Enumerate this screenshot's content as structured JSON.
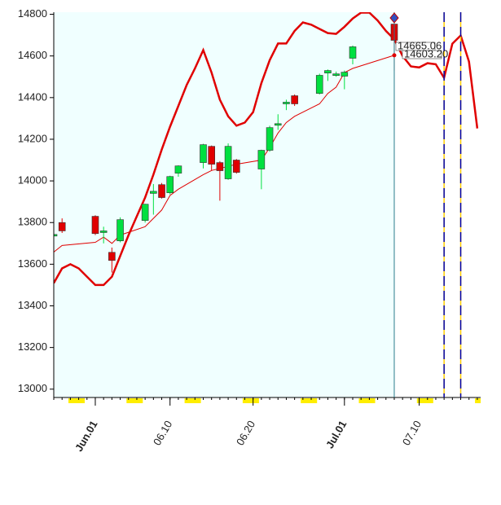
{
  "chart_data": {
    "type": "candlestick",
    "xlim": [
      -4,
      47.4
    ],
    "ylim": [
      12960,
      14810
    ],
    "yticks": [
      13000,
      13200,
      13400,
      13600,
      13800,
      14000,
      14200,
      14400,
      14600,
      14800
    ],
    "xticks": [
      {
        "value": 1,
        "label": "Jun.01"
      },
      {
        "value": 10,
        "label": "06.10"
      },
      {
        "value": 20,
        "label": "06.20"
      },
      {
        "value": 31,
        "label": "Jul.01"
      },
      {
        "value": 40,
        "label": "07.10"
      }
    ],
    "xtick_colors": [
      "#8b0000",
      "#666666",
      "#666666",
      "#8b0000",
      "#666666"
    ],
    "up_color": "#00e040",
    "down_color": "#e00000",
    "plot_background": "#f0ffff",
    "candles": {
      "x": [
        -4,
        -3,
        1,
        2,
        3,
        4,
        7,
        8,
        9,
        10,
        11,
        14,
        15,
        16,
        17,
        18,
        21,
        22,
        23,
        24,
        25,
        28,
        29,
        30,
        31,
        32,
        37
      ],
      "open": [
        13743,
        13800,
        13830,
        13752,
        13657,
        13712,
        13810,
        13940,
        13982,
        13943,
        14037,
        14088,
        14166,
        14088,
        14010,
        14100,
        14057,
        14147,
        14268,
        14370,
        14409,
        14420,
        14518,
        14508,
        14503,
        14589,
        14753
      ],
      "high": [
        13750,
        13820,
        13835,
        13780,
        13680,
        13825,
        13890,
        13985,
        13990,
        14025,
        14075,
        14178,
        14170,
        14095,
        14180,
        14105,
        14150,
        14265,
        14320,
        14390,
        14415,
        14515,
        14535,
        14525,
        14530,
        14650,
        14770
      ],
      "low": [
        13735,
        13750,
        13740,
        13700,
        13560,
        13705,
        13800,
        13838,
        13915,
        13935,
        14020,
        14060,
        14050,
        13905,
        14005,
        14035,
        13960,
        14140,
        14245,
        14340,
        14360,
        14415,
        14480,
        14500,
        14440,
        14560,
        14530
      ],
      "close": [
        13743,
        13760,
        13747,
        13760,
        13618,
        13814,
        13888,
        13950,
        13920,
        14021,
        14072,
        14174,
        14080,
        14049,
        14166,
        14041,
        14147,
        14256,
        14275,
        14378,
        14370,
        14507,
        14530,
        14514,
        14522,
        14644,
        14675
      ]
    },
    "series": [
      {
        "color": "#e00000",
        "width": 1,
        "x": [
          -4,
          -3,
          1,
          2,
          3,
          4,
          7,
          8,
          9,
          10,
          11,
          14,
          15,
          16,
          17,
          18,
          21,
          22,
          23,
          24,
          25,
          28,
          29,
          30,
          31,
          32,
          37
        ],
        "values": [
          13658,
          13690,
          13705,
          13730,
          13700,
          13740,
          13780,
          13820,
          13860,
          13930,
          13960,
          14030,
          14050,
          14060,
          14070,
          14080,
          14100,
          14160,
          14230,
          14280,
          14310,
          14370,
          14420,
          14450,
          14520,
          14540,
          14603.2
        ]
      },
      {
        "color": "#e00000",
        "width": 2.5,
        "x": [
          -4,
          -3,
          -2,
          -1,
          0,
          1,
          2,
          3,
          4,
          5,
          6,
          7,
          8,
          9,
          10,
          11,
          12,
          13,
          14,
          15,
          16,
          17,
          18,
          19,
          20,
          21,
          22,
          23,
          24,
          25,
          26,
          27,
          28,
          29,
          30,
          31,
          32,
          33,
          34,
          35,
          36,
          37,
          38,
          39,
          40,
          41,
          42,
          43,
          44,
          45,
          46,
          47
        ],
        "values": [
          13509,
          13580,
          13600,
          13580,
          13540,
          13500,
          13500,
          13540,
          13640,
          13740,
          13830,
          13920,
          14030,
          14150,
          14260,
          14360,
          14460,
          14540,
          14628,
          14520,
          14390,
          14310,
          14265,
          14280,
          14330,
          14470,
          14580,
          14660,
          14660,
          14720,
          14761,
          14750,
          14730,
          14710,
          14706,
          14740,
          14780,
          14808,
          14808,
          14770,
          14720,
          14680,
          14600,
          14550,
          14545,
          14565,
          14560,
          14495,
          14659,
          14698,
          14573,
          14252
        ]
      }
    ],
    "cursor_x": 37,
    "event_lines": [
      43,
      45
    ],
    "annotations": [
      "14665.06",
      "14603.20"
    ]
  }
}
